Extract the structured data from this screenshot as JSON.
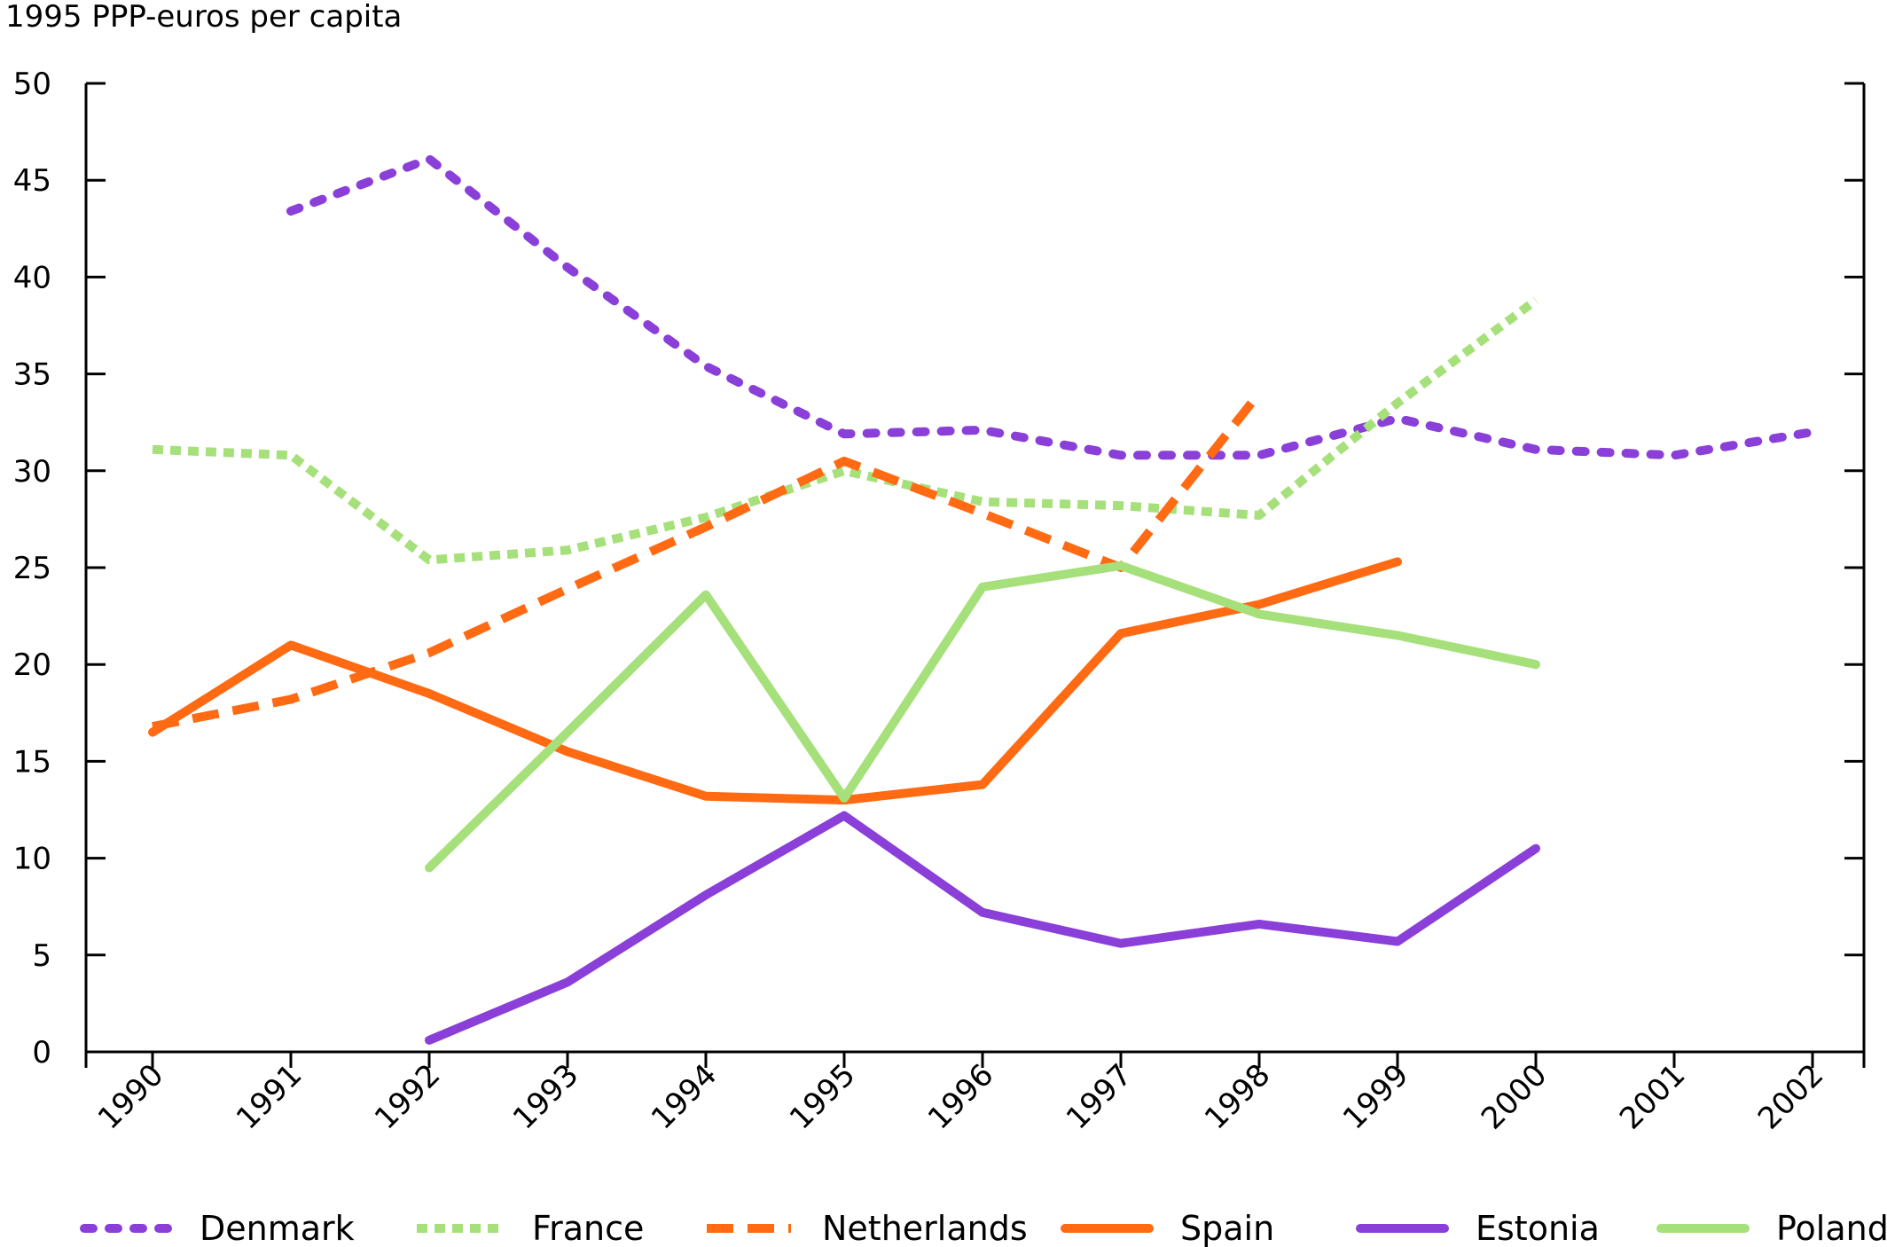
{
  "chart_data": {
    "type": "line",
    "title": "",
    "ylabel": "1995 PPP-euros per capita",
    "xlabel": "",
    "ylim": [
      0,
      50
    ],
    "yticks": [
      0,
      5,
      10,
      15,
      20,
      25,
      30,
      35,
      40,
      45,
      50
    ],
    "categories": [
      "1990",
      "1991",
      "1992",
      "1993",
      "1994",
      "1995",
      "1996",
      "1997",
      "1998",
      "1999",
      "2000",
      "2001",
      "2002"
    ],
    "grid": false,
    "legend_position": "bottom",
    "series": [
      {
        "name": "Denmark",
        "color": "#8a3fd8",
        "style": "dotted",
        "values": [
          null,
          43.4,
          46.1,
          40.5,
          35.4,
          31.9,
          32.1,
          30.8,
          30.8,
          32.7,
          31.1,
          30.8,
          32.0
        ]
      },
      {
        "name": "France",
        "color": "#a6e07a",
        "style": "dotted-fine",
        "values": [
          31.1,
          30.8,
          25.4,
          25.9,
          27.6,
          30.0,
          28.4,
          28.2,
          27.7,
          33.5,
          38.8,
          null,
          null
        ]
      },
      {
        "name": "Netherlands",
        "color": "#ff6a13",
        "style": "dashed",
        "values": [
          16.8,
          18.2,
          20.6,
          23.9,
          27.1,
          30.5,
          27.8,
          25.0,
          34.0,
          null,
          null,
          null,
          null
        ]
      },
      {
        "name": "Spain",
        "color": "#ff6a13",
        "style": "solid",
        "values": [
          16.5,
          21.0,
          18.5,
          15.5,
          13.2,
          13.0,
          13.8,
          21.6,
          23.1,
          25.3,
          null,
          null,
          null
        ]
      },
      {
        "name": "Estonia",
        "color": "#8a3fd8",
        "style": "solid",
        "values": [
          null,
          null,
          0.6,
          3.6,
          8.1,
          12.2,
          7.2,
          5.6,
          6.6,
          5.7,
          10.5,
          null,
          null
        ]
      },
      {
        "name": "Poland",
        "color": "#a6e07a",
        "style": "solid",
        "values": [
          null,
          null,
          9.5,
          16.5,
          23.6,
          13.1,
          24.0,
          25.1,
          22.6,
          21.5,
          20.0,
          null,
          null
        ]
      }
    ]
  }
}
